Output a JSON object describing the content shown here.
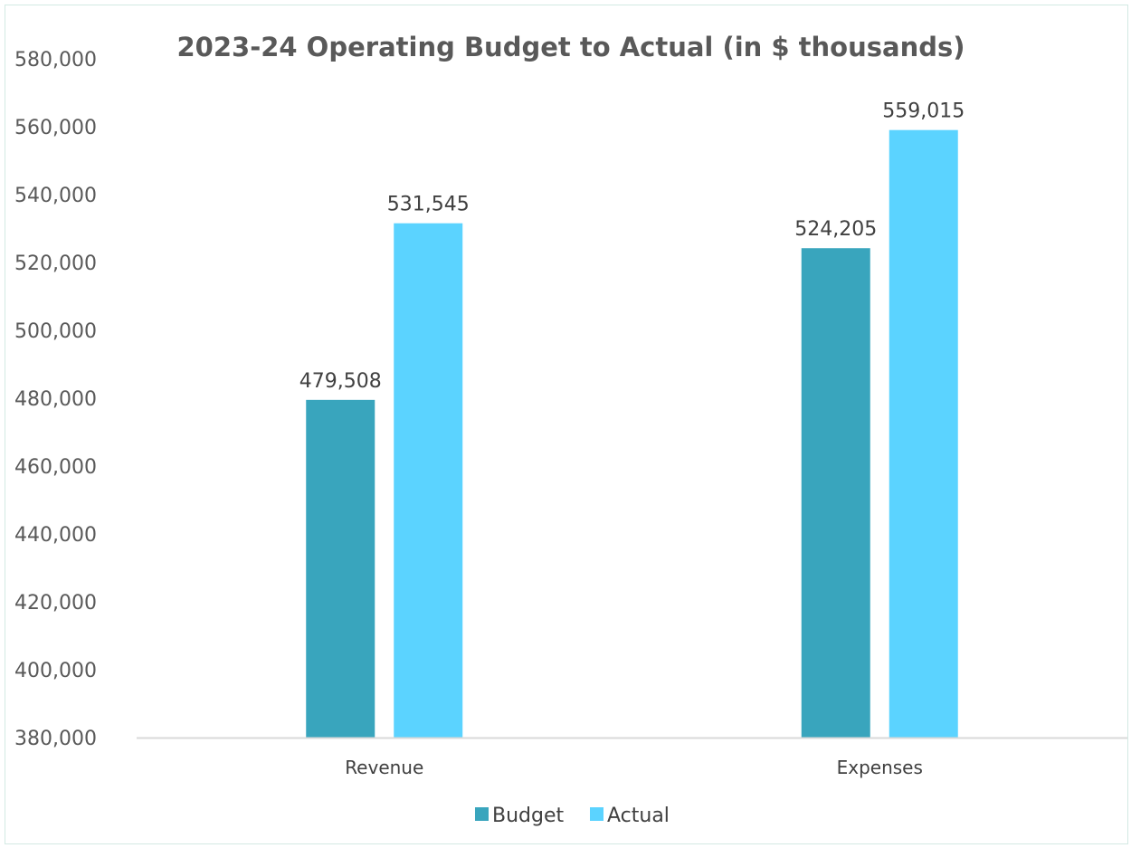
{
  "chart_data": {
    "type": "bar",
    "title": "2023-24 Operating Budget to Actual (in $ thousands)",
    "categories": [
      "Revenue",
      "Expenses"
    ],
    "series": [
      {
        "name": "Budget",
        "values": [
          479508,
          524205
        ],
        "color": "#39a5bd"
      },
      {
        "name": "Actual",
        "values": [
          531545,
          559015
        ],
        "color": "#5bd3ff"
      }
    ],
    "data_labels": [
      [
        "479,508",
        "524,205"
      ],
      [
        "531,545",
        "559,015"
      ]
    ],
    "ylim": [
      380000,
      580000
    ],
    "y_ticks": [
      "380,000",
      "400,000",
      "420,000",
      "440,000",
      "460,000",
      "480,000",
      "500,000",
      "520,000",
      "540,000",
      "560,000",
      "580,000"
    ],
    "xlabel": "",
    "ylabel": "",
    "grid": false,
    "legend_position": "bottom"
  }
}
